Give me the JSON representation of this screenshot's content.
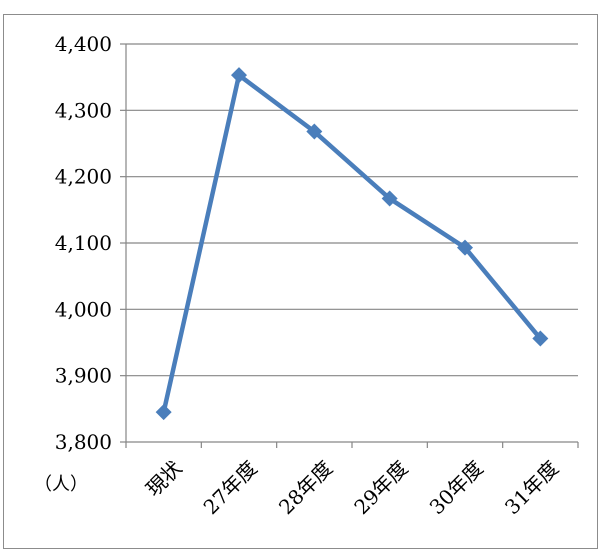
{
  "chart_data": {
    "type": "line",
    "categories": [
      "現状",
      "27年度",
      "28年度",
      "29年度",
      "30年度",
      "31年度"
    ],
    "series": [
      {
        "values": [
          3845,
          4353,
          4268,
          4167,
          4093,
          3956
        ],
        "color": "#4a7ebb"
      }
    ],
    "ylim": [
      3800,
      4400
    ],
    "yticks": [
      3800,
      3900,
      4000,
      4100,
      4200,
      4300,
      4400
    ],
    "ytick_labels": [
      "3,800",
      "3,900",
      "4,000",
      "4,100",
      "4,200",
      "4,300",
      "4,400"
    ],
    "unit_label": "（人）",
    "grid": true,
    "marker": "diamond"
  }
}
